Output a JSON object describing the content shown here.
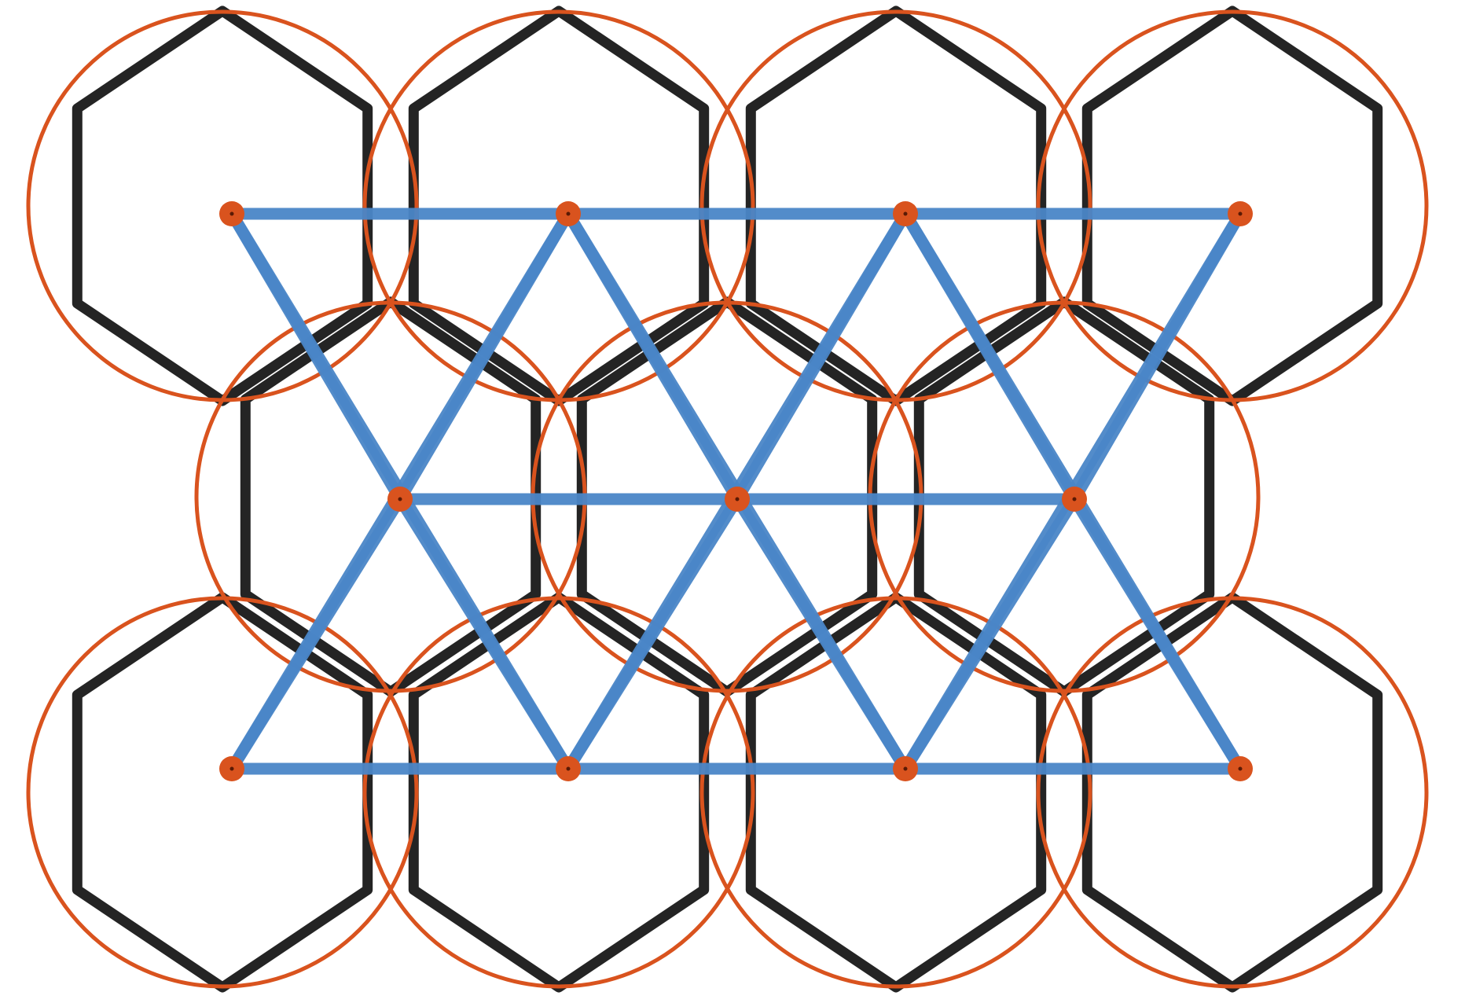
{
  "diagram": {
    "kind": "hexagon-lattice-with-circle-packing-and-triangular-network",
    "colors": {
      "background": "#ffffff",
      "hexagon_stroke": "#111111",
      "circle_stroke": "#d9531e",
      "network_line": "#4a86c8",
      "node_fill": "#d9531e"
    },
    "hex_cells": [
      {
        "row": 0,
        "col": 0
      },
      {
        "row": 0,
        "col": 1
      },
      {
        "row": 0,
        "col": 2
      },
      {
        "row": 0,
        "col": 3
      },
      {
        "row": 1,
        "col": 0
      },
      {
        "row": 1,
        "col": 1
      },
      {
        "row": 1,
        "col": 2
      },
      {
        "row": 2,
        "col": 0
      },
      {
        "row": 2,
        "col": 1
      },
      {
        "row": 2,
        "col": 2
      },
      {
        "row": 2,
        "col": 3
      }
    ],
    "network_nodes": [
      {
        "row": 0,
        "col": 0
      },
      {
        "row": 0,
        "col": 1
      },
      {
        "row": 0,
        "col": 2
      },
      {
        "row": 0,
        "col": 3
      },
      {
        "row": 1,
        "col": 0
      },
      {
        "row": 1,
        "col": 1
      },
      {
        "row": 1,
        "col": 2
      },
      {
        "row": 2,
        "col": 0
      },
      {
        "row": 2,
        "col": 1
      },
      {
        "row": 2,
        "col": 2
      },
      {
        "row": 2,
        "col": 3
      }
    ]
  }
}
